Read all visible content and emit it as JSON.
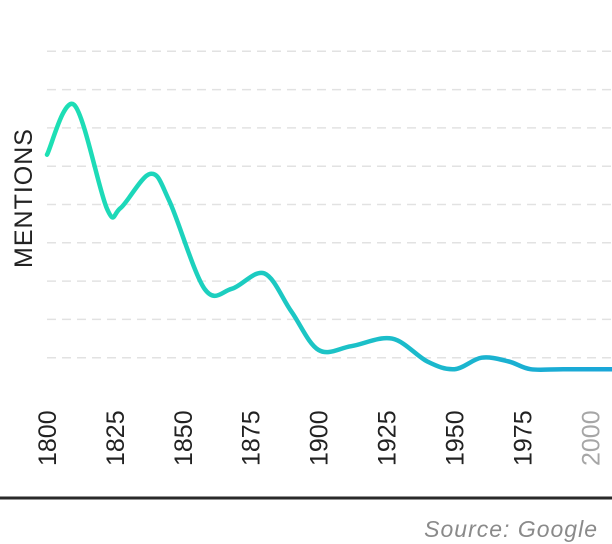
{
  "chart_data": {
    "type": "line",
    "ylabel": "MENTIONS",
    "xlabel": "",
    "source": "Source: Google",
    "x_ticks": [
      "1800",
      "1825",
      "1850",
      "1875",
      "1900",
      "1925",
      "1950",
      "1975",
      "2000"
    ],
    "muted_ticks": [
      "2000"
    ],
    "xlim": [
      1800,
      2008
    ],
    "ylim": [
      0,
      10
    ],
    "gridline_values": [
      1,
      2,
      3,
      4,
      5,
      6,
      7,
      8,
      9
    ],
    "grid": true,
    "line_color_start": "#1de0b4",
    "line_color_end": "#1aa6d8",
    "series": [
      {
        "x": [
          1800,
          1810,
          1822,
          1827,
          1838,
          1845,
          1858,
          1868,
          1880,
          1890,
          1900,
          1912,
          1927,
          1940,
          1950,
          1960,
          1970,
          1978,
          1990,
          2008
        ],
        "values": [
          6.3,
          7.6,
          4.9,
          4.9,
          5.8,
          5.1,
          2.8,
          2.8,
          3.2,
          2.2,
          1.2,
          1.3,
          1.5,
          0.9,
          0.7,
          1.0,
          0.9,
          0.7,
          0.7,
          0.7
        ]
      }
    ]
  }
}
